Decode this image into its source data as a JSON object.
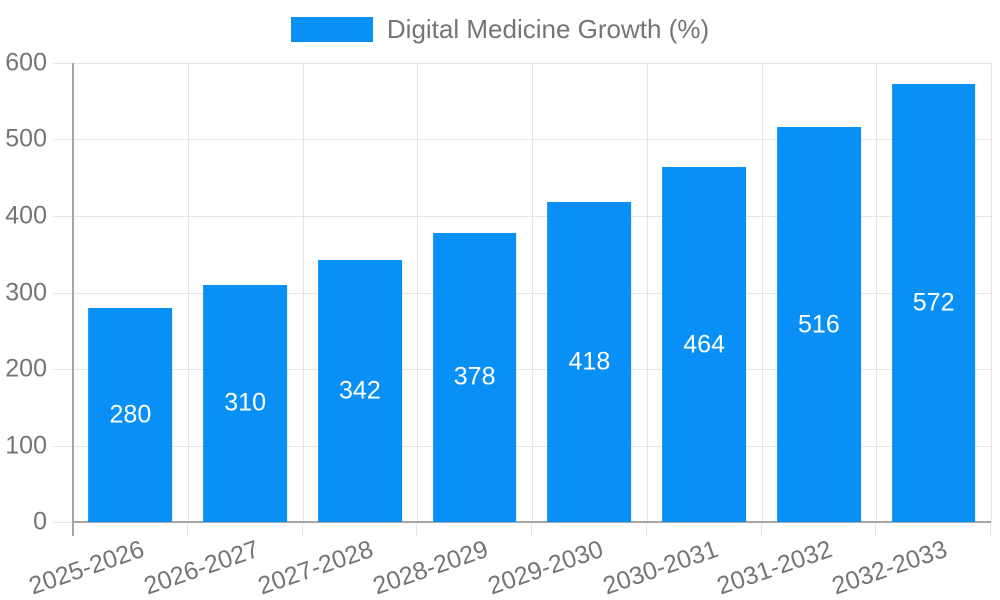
{
  "legend": {
    "label": "Digital Medicine Growth (%)"
  },
  "chart_data": {
    "type": "bar",
    "title": "Digital Medicine Growth (%)",
    "categories": [
      "2025-2026",
      "2026-2027",
      "2027-2028",
      "2028-2029",
      "2029-2030",
      "2030-2031",
      "2031-2032",
      "2032-2033"
    ],
    "values": [
      280,
      310,
      342,
      378,
      418,
      464,
      516,
      572
    ],
    "xlabel": "",
    "ylabel": "",
    "ylim": [
      0,
      600
    ],
    "yticks": [
      0,
      100,
      200,
      300,
      400,
      500,
      600
    ],
    "grid": true,
    "legend_position": "top-center",
    "bar_value_labels_inside": true,
    "colors": {
      "bar": "#0990f7",
      "grid": "#e6e6e6",
      "axis": "#a6a6a6",
      "tick_text": "#757575",
      "legend_text": "#757575",
      "value_label_text": "#ffffff",
      "background": "#ffffff"
    }
  }
}
